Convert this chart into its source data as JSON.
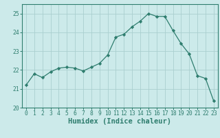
{
  "x": [
    0,
    1,
    2,
    3,
    4,
    5,
    6,
    7,
    8,
    9,
    10,
    11,
    12,
    13,
    14,
    15,
    16,
    17,
    18,
    19,
    20,
    21,
    22,
    23
  ],
  "y": [
    21.2,
    21.8,
    21.6,
    21.9,
    22.1,
    22.15,
    22.1,
    21.95,
    22.15,
    22.35,
    22.8,
    23.75,
    23.9,
    24.3,
    24.6,
    25.0,
    24.85,
    24.85,
    24.1,
    23.4,
    22.85,
    21.7,
    21.55,
    20.35
  ],
  "line_color": "#2e7d6e",
  "marker": "D",
  "marker_size": 2.2,
  "bg_color": "#cceaea",
  "grid_color": "#aacfcf",
  "tick_color": "#2e7d6e",
  "xlabel": "Humidex (Indice chaleur)",
  "ylim": [
    20,
    25.5
  ],
  "xlim": [
    -0.5,
    23.5
  ],
  "yticks": [
    20,
    21,
    22,
    23,
    24,
    25
  ],
  "xticks": [
    0,
    1,
    2,
    3,
    4,
    5,
    6,
    7,
    8,
    9,
    10,
    11,
    12,
    13,
    14,
    15,
    16,
    17,
    18,
    19,
    20,
    21,
    22,
    23
  ],
  "label_fontsize": 7,
  "tick_fontsize": 5.8,
  "xlabel_fontsize": 7.5
}
